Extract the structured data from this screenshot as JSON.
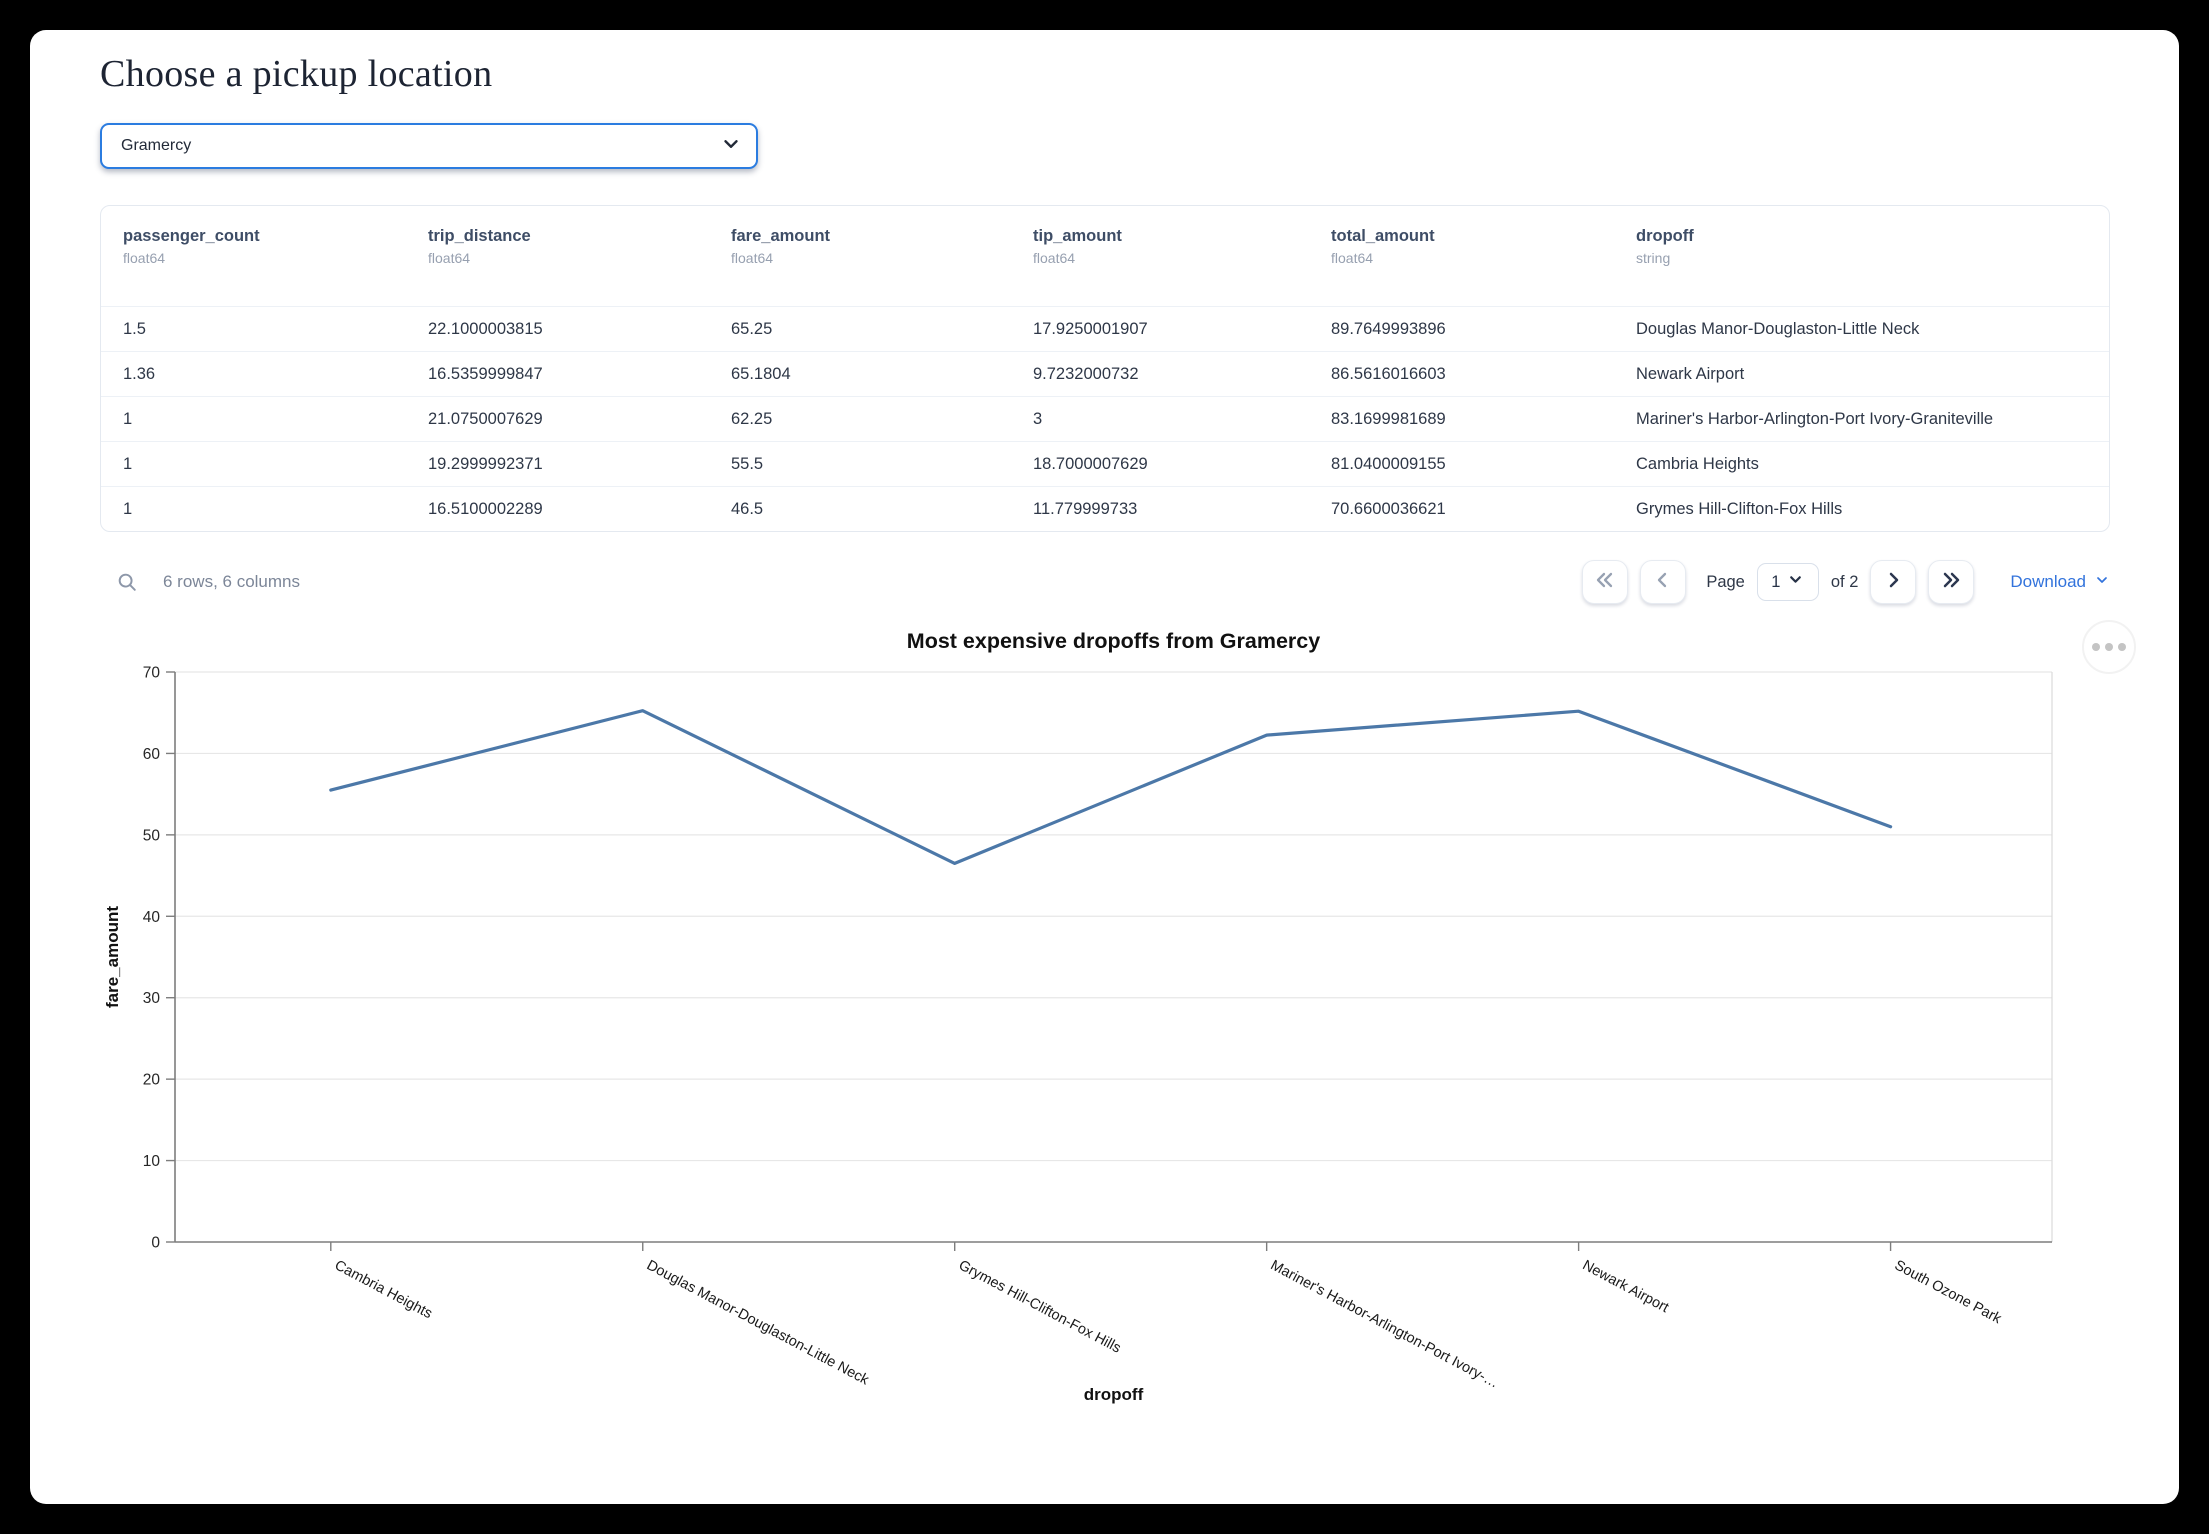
{
  "page": {
    "title": "Choose a pickup location"
  },
  "pickup_select": {
    "value": "Gramercy"
  },
  "table": {
    "columns": [
      {
        "name": "passenger_count",
        "type": "float64"
      },
      {
        "name": "trip_distance",
        "type": "float64"
      },
      {
        "name": "fare_amount",
        "type": "float64"
      },
      {
        "name": "tip_amount",
        "type": "float64"
      },
      {
        "name": "total_amount",
        "type": "float64"
      },
      {
        "name": "dropoff",
        "type": "string"
      }
    ],
    "rows": [
      [
        "1.5",
        "22.1000003815",
        "65.25",
        "17.9250001907",
        "89.7649993896",
        "Douglas Manor-Douglaston-Little Neck"
      ],
      [
        "1.36",
        "16.5359999847",
        "65.1804",
        "9.7232000732",
        "86.5616016603",
        "Newark Airport"
      ],
      [
        "1",
        "21.0750007629",
        "62.25",
        "3",
        "83.1699981689",
        "Mariner's Harbor-Arlington-Port Ivory-Graniteville"
      ],
      [
        "1",
        "19.2999992371",
        "55.5",
        "18.7000007629",
        "81.0400009155",
        "Cambria Heights"
      ],
      [
        "1",
        "16.5100002289",
        "46.5",
        "11.779999733",
        "70.6600036621",
        "Grymes Hill-Clifton-Fox Hills"
      ]
    ]
  },
  "table_footer": {
    "summary": "6 rows, 6 columns",
    "page_label": "Page",
    "page_value": "1",
    "of_label": "of 2",
    "download_label": "Download"
  },
  "icons": {
    "search": "magnifier",
    "select_chevron": "chevron-down",
    "first_page": "double-chevron-left",
    "prev_page": "chevron-left",
    "next_page": "chevron-right",
    "last_page": "double-chevron-right",
    "page_select_chevron": "chevron-down",
    "download_chevron": "chevron-down",
    "chart_menu": "ellipsis"
  },
  "colors": {
    "accent_blue": "#2b7ce0",
    "link_blue": "#3273dc",
    "line_color": "#4c78a8",
    "header_text": "#3e4d66",
    "muted_text": "#97a0b0",
    "frame": "#000000"
  },
  "chart_data": {
    "type": "line",
    "title": "Most expensive dropoffs from Gramercy",
    "xlabel": "dropoff",
    "ylabel": "fare_amount",
    "categories": [
      "Cambria Heights",
      "Douglas Manor-Douglaston-Little Neck",
      "Grymes Hill-Clifton-Fox Hills",
      "Mariner's Harbor-Arlington-Port Ivory-…",
      "Newark Airport",
      "South Ozone Park"
    ],
    "values": [
      55.5,
      65.25,
      46.5,
      62.25,
      65.1804,
      51
    ],
    "ylim": [
      0,
      70
    ],
    "yticks": [
      0,
      10,
      20,
      30,
      40,
      50,
      60,
      70
    ],
    "grid": true,
    "legend": "none",
    "line_color": "#4c78a8"
  }
}
